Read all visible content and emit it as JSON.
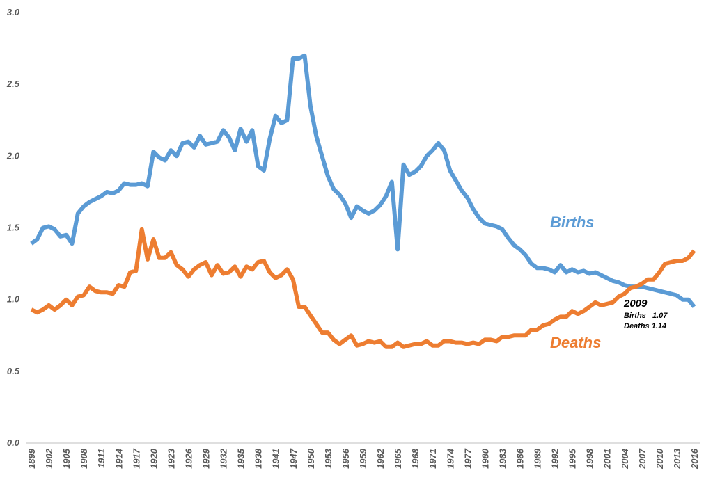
{
  "chart_data": {
    "type": "line",
    "categories": [
      "1899",
      null,
      null,
      "1902",
      null,
      null,
      "1905",
      null,
      null,
      "1908",
      null,
      null,
      "1911",
      null,
      null,
      "1914",
      null,
      null,
      "1917",
      null,
      null,
      "1920",
      null,
      null,
      "1923",
      null,
      null,
      "1926",
      null,
      null,
      "1929",
      null,
      null,
      "1932",
      null,
      null,
      "1935",
      null,
      null,
      "1938",
      null,
      null,
      "1941",
      null,
      null,
      "1947",
      null,
      null,
      "1950",
      null,
      null,
      "1953",
      null,
      null,
      "1956",
      null,
      null,
      "1959",
      null,
      null,
      "1962",
      null,
      null,
      "1965",
      null,
      null,
      "1968",
      null,
      null,
      "1971",
      null,
      null,
      "1974",
      null,
      null,
      "1977",
      null,
      null,
      "1980",
      null,
      null,
      "1983",
      null,
      null,
      "1986",
      null,
      null,
      "1989",
      null,
      null,
      "1992",
      null,
      null,
      "1995",
      null,
      null,
      "1998",
      null,
      null,
      "2001",
      null,
      null,
      "2004",
      null,
      null,
      "2007",
      null,
      null,
      "2010",
      null,
      null,
      "2013",
      null,
      null,
      "2016"
    ],
    "series": [
      {
        "name": "Births",
        "color": "#5b9bd5",
        "values": [
          1.39,
          1.42,
          1.5,
          1.51,
          1.49,
          1.44,
          1.45,
          1.39,
          1.6,
          1.65,
          1.68,
          1.7,
          1.72,
          1.75,
          1.74,
          1.76,
          1.81,
          1.8,
          1.8,
          1.81,
          1.79,
          2.03,
          1.99,
          1.97,
          2.04,
          2.0,
          2.09,
          2.1,
          2.06,
          2.14,
          2.08,
          2.09,
          2.1,
          2.18,
          2.13,
          2.04,
          2.19,
          2.1,
          2.18,
          1.93,
          1.9,
          2.12,
          2.28,
          2.23,
          2.25,
          2.68,
          2.68,
          2.7,
          2.35,
          2.14,
          2.0,
          1.86,
          1.77,
          1.73,
          1.67,
          1.57,
          1.65,
          1.62,
          1.6,
          1.62,
          1.66,
          1.72,
          1.82,
          1.35,
          1.94,
          1.87,
          1.89,
          1.93,
          2.0,
          2.04,
          2.09,
          2.04,
          1.9,
          1.83,
          1.76,
          1.71,
          1.63,
          1.57,
          1.53,
          1.52,
          1.51,
          1.49,
          1.43,
          1.38,
          1.35,
          1.31,
          1.25,
          1.22,
          1.22,
          1.21,
          1.19,
          1.24,
          1.19,
          1.21,
          1.19,
          1.2,
          1.18,
          1.19,
          1.17,
          1.15,
          1.13,
          1.12,
          1.1,
          1.09,
          1.09,
          1.09,
          1.08,
          1.07,
          1.06,
          1.05,
          1.04,
          1.03,
          1.0,
          1.0,
          0.95
        ]
      },
      {
        "name": "Deaths",
        "color": "#ed7d31",
        "values": [
          0.93,
          0.91,
          0.93,
          0.96,
          0.93,
          0.96,
          1.0,
          0.96,
          1.02,
          1.03,
          1.09,
          1.06,
          1.05,
          1.05,
          1.04,
          1.1,
          1.09,
          1.19,
          1.2,
          1.49,
          1.28,
          1.42,
          1.29,
          1.29,
          1.33,
          1.24,
          1.21,
          1.16,
          1.21,
          1.24,
          1.26,
          1.17,
          1.24,
          1.18,
          1.19,
          1.23,
          1.16,
          1.23,
          1.21,
          1.26,
          1.27,
          1.19,
          1.15,
          1.17,
          1.21,
          1.14,
          0.95,
          0.95,
          0.89,
          0.83,
          0.77,
          0.77,
          0.72,
          0.69,
          0.72,
          0.75,
          0.68,
          0.69,
          0.71,
          0.7,
          0.71,
          0.67,
          0.67,
          0.7,
          0.67,
          0.68,
          0.69,
          0.69,
          0.71,
          0.68,
          0.68,
          0.71,
          0.71,
          0.7,
          0.7,
          0.69,
          0.7,
          0.69,
          0.72,
          0.72,
          0.71,
          0.74,
          0.74,
          0.75,
          0.75,
          0.75,
          0.79,
          0.79,
          0.82,
          0.83,
          0.86,
          0.88,
          0.88,
          0.92,
          0.9,
          0.92,
          0.95,
          0.98,
          0.96,
          0.97,
          0.98,
          1.02,
          1.04,
          1.08,
          1.09,
          1.11,
          1.14,
          1.14,
          1.19,
          1.25,
          1.26,
          1.27,
          1.27,
          1.29,
          1.34
        ]
      }
    ],
    "ylim": [
      0,
      3
    ],
    "yticks": [
      {
        "value": 0,
        "label": "0.0"
      },
      0.5,
      {
        "value": 1,
        "label": "1.0"
      },
      1.5,
      {
        "value": 2,
        "label": "2.0"
      },
      2.5,
      {
        "value": 3,
        "label": "3.0"
      }
    ],
    "grid": false,
    "annotations": [
      "2009",
      "Births   1.07",
      "Deaths 1.14"
    ]
  }
}
